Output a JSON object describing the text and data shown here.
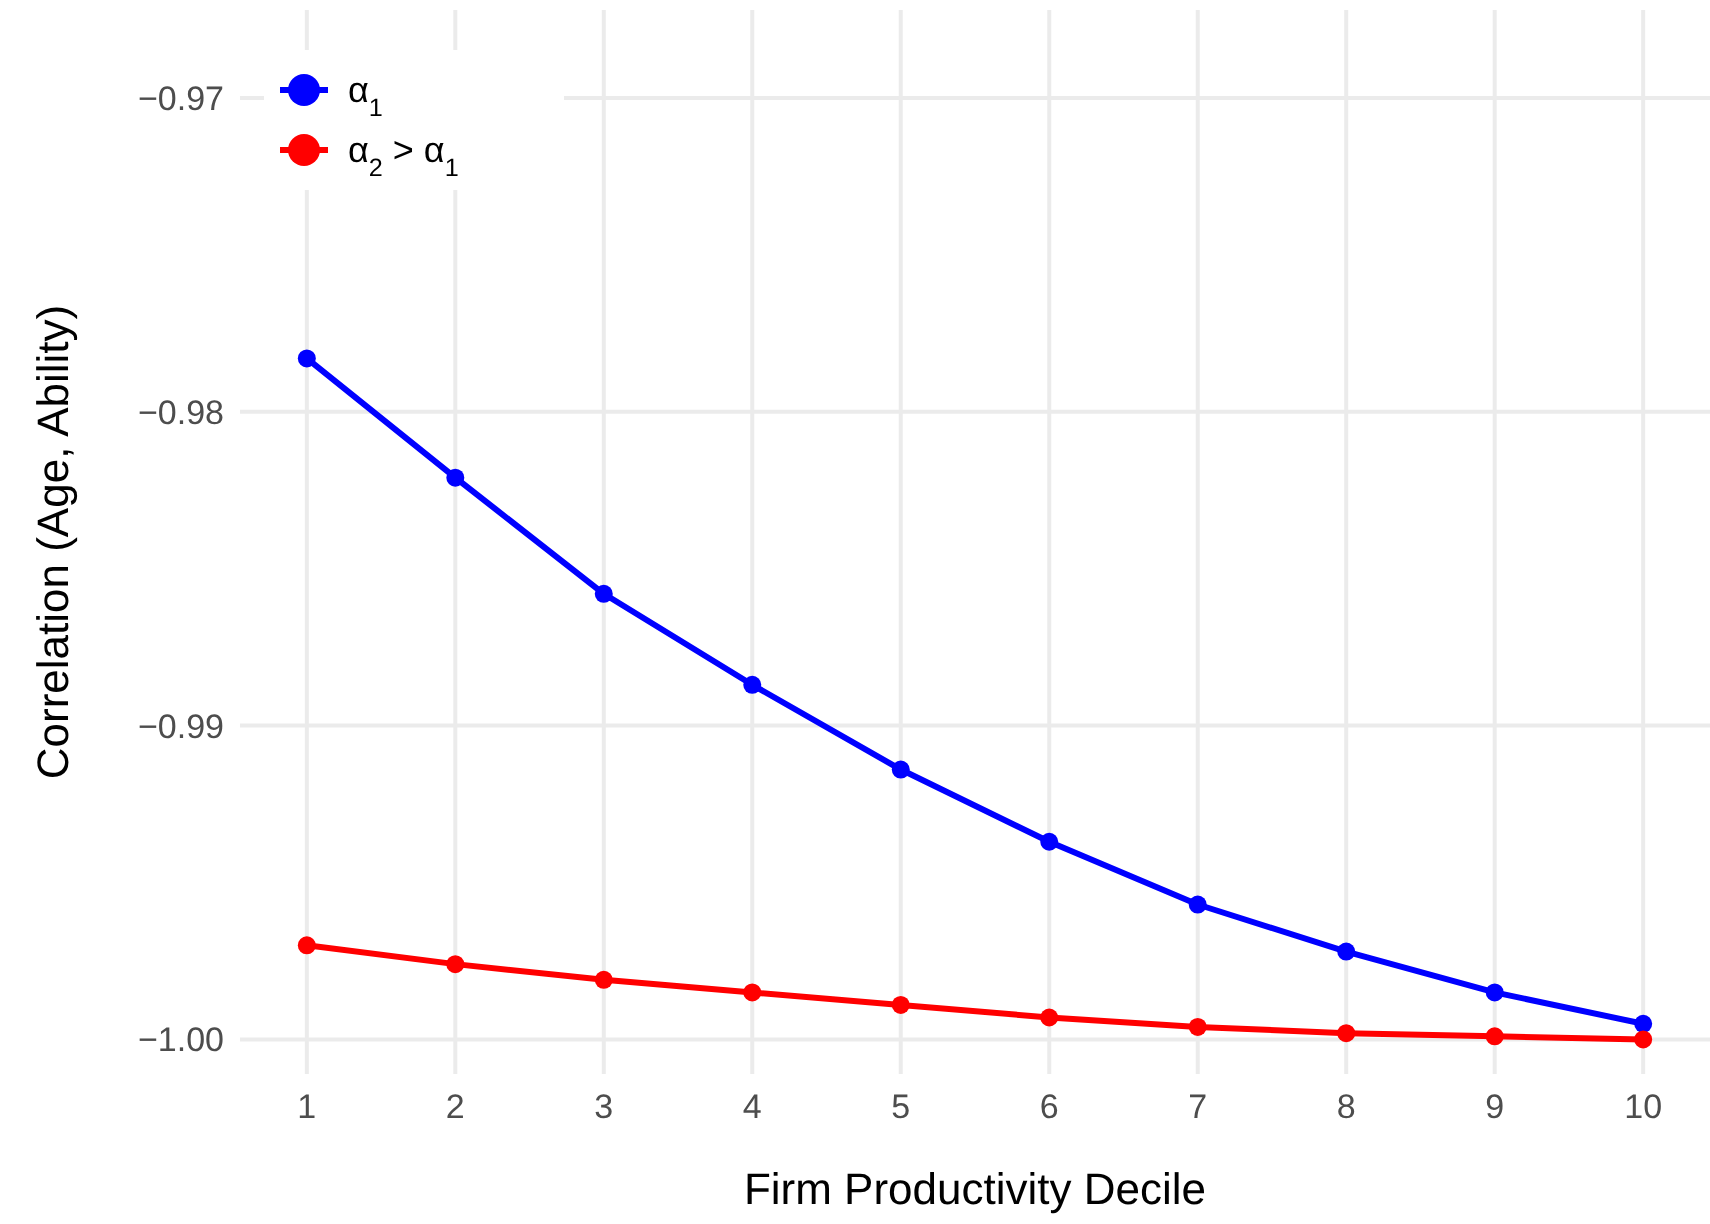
{
  "chart_data": {
    "type": "line",
    "xlabel": "Firm Productivity Decile",
    "ylabel": "Correlation (Age, Ability)",
    "x": [
      1,
      2,
      3,
      4,
      5,
      6,
      7,
      8,
      9,
      10
    ],
    "series": [
      {
        "name": "α$_{1}$",
        "color": "#0000ff",
        "values": [
          -0.9783,
          -0.9821,
          -0.9858,
          -0.9887,
          -0.9914,
          -0.9937,
          -0.9957,
          -0.9972,
          -0.9985,
          -0.9995
        ]
      },
      {
        "name": "α$_{2}$ > α$_{1}$",
        "color": "#ff0000",
        "values": [
          -0.997,
          -0.9976,
          -0.9981,
          -0.9985,
          -0.9989,
          -0.9993,
          -0.9996,
          -0.9998,
          -0.9999,
          -1.0
        ]
      }
    ],
    "xlim": [
      0.55,
      10.45
    ],
    "ylim": [
      -1.0011,
      -0.9672
    ],
    "xticks": [
      1,
      2,
      3,
      4,
      5,
      6,
      7,
      8,
      9,
      10
    ],
    "yticks": [
      {
        "value": -1.0,
        "label": "−1.00"
      },
      {
        "value": -0.99,
        "label": "−0.99"
      },
      {
        "value": -0.98,
        "label": "−0.98"
      },
      {
        "value": -0.97,
        "label": "−0.97"
      }
    ],
    "grid": true,
    "legend": "top left",
    "marker": "circle",
    "line_style": "solid"
  }
}
